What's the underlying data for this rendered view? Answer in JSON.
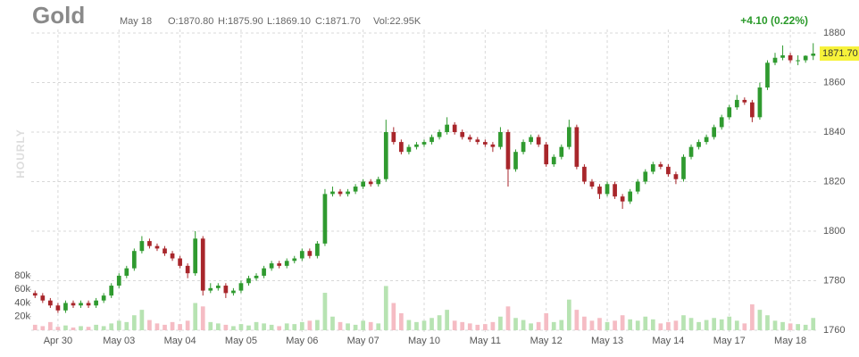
{
  "chart_data": {
    "type": "candlestick",
    "title": "Gold",
    "header": {
      "date": "May 18",
      "open": "O:1870.80",
      "high": "H:1875.90",
      "low": "L:1869.10",
      "close": "C:1871.70",
      "volume": "Vol:22.95K",
      "change": "+4.10 (0.22%)"
    },
    "side_label": "HOURLY",
    "last_label": {
      "value": 1871.7,
      "label": "1871.70"
    },
    "up_color": "#2f9a2f",
    "down_color": "#a8262b",
    "volume_up_color": "#b7e3b2",
    "volume_down_color": "#f5bcc4",
    "label_color": "#f7f23a",
    "grid": true,
    "categories": [
      null,
      null,
      null,
      "Apr 30",
      null,
      null,
      null,
      null,
      null,
      null,
      null,
      "May 03",
      null,
      null,
      null,
      null,
      null,
      null,
      null,
      "May 04",
      null,
      null,
      null,
      null,
      null,
      null,
      null,
      "May 05",
      null,
      null,
      null,
      null,
      null,
      null,
      null,
      "May 06",
      null,
      null,
      null,
      null,
      null,
      null,
      null,
      "May 07",
      null,
      null,
      null,
      null,
      null,
      null,
      null,
      "May 10",
      null,
      null,
      null,
      null,
      null,
      null,
      null,
      "May 11",
      null,
      null,
      null,
      null,
      null,
      null,
      null,
      "May 12",
      null,
      null,
      null,
      null,
      null,
      null,
      null,
      "May 13",
      null,
      null,
      null,
      null,
      null,
      null,
      null,
      "May 14",
      null,
      null,
      null,
      null,
      null,
      null,
      null,
      "May 17",
      null,
      null,
      null,
      null,
      null,
      null,
      null,
      "May 18",
      null,
      null,
      null
    ],
    "open": [
      1775,
      1774,
      1772,
      1770,
      1768,
      1771,
      1770,
      1771,
      1770,
      1772,
      1774,
      1778,
      1782,
      1785,
      1792,
      1796,
      1794,
      1793,
      1791,
      1789,
      1786,
      1783,
      1797,
      1776,
      1777,
      1778,
      1775,
      1776,
      1779,
      1781,
      1782,
      1785,
      1787,
      1786,
      1788,
      1789,
      1792,
      1790,
      1795,
      1815,
      1816,
      1815,
      1816,
      1818,
      1820,
      1819,
      1821,
      1840,
      1836,
      1832,
      1834,
      1835,
      1836,
      1838,
      1840,
      1843,
      1840,
      1838,
      1837,
      1836,
      1835,
      1834,
      1840,
      1825,
      1832,
      1836,
      1838,
      1835,
      1827,
      1830,
      1834,
      1842,
      1826,
      1820,
      1818,
      1815,
      1819,
      1814,
      1812,
      1816,
      1820,
      1824,
      1827,
      1826,
      1823,
      1821,
      1830,
      1834,
      1836,
      1838,
      1842,
      1846,
      1850,
      1853,
      1852,
      1846,
      1858,
      1868,
      1870,
      1871,
      1869,
      1869,
      1870.8
    ],
    "high": [
      1776,
      1775,
      1773,
      1771,
      1772,
      1772,
      1772,
      1772,
      1773,
      1775,
      1779,
      1783,
      1786,
      1793,
      1798,
      1797,
      1795,
      1794,
      1792,
      1790,
      1787,
      1800,
      1798,
      1779,
      1779,
      1779,
      1777,
      1780,
      1782,
      1783,
      1786,
      1788,
      1788,
      1789,
      1790,
      1793,
      1793,
      1796,
      1817,
      1818,
      1817,
      1817,
      1819,
      1821,
      1821,
      1822,
      1845,
      1842,
      1837,
      1835,
      1836,
      1837,
      1839,
      1841,
      1846,
      1844,
      1841,
      1839,
      1838,
      1837,
      1836,
      1842,
      1841,
      1833,
      1837,
      1839,
      1839,
      1836,
      1831,
      1835,
      1845,
      1843,
      1827,
      1821,
      1819,
      1820,
      1820,
      1815,
      1817,
      1821,
      1825,
      1828,
      1828,
      1827,
      1824,
      1831,
      1835,
      1837,
      1839,
      1843,
      1847,
      1851,
      1855,
      1854,
      1853,
      1860,
      1869,
      1872,
      1875,
      1872,
      1871,
      1871,
      1875.9
    ],
    "low": [
      1773,
      1771,
      1769,
      1767,
      1767,
      1769,
      1769,
      1769,
      1769,
      1771,
      1773,
      1777,
      1781,
      1784,
      1791,
      1793,
      1792,
      1790,
      1788,
      1785,
      1781,
      1782,
      1774,
      1775,
      1776,
      1773,
      1774,
      1775,
      1778,
      1780,
      1781,
      1784,
      1785,
      1785,
      1787,
      1788,
      1789,
      1789,
      1794,
      1814,
      1814,
      1814,
      1815,
      1817,
      1818,
      1818,
      1820,
      1835,
      1831,
      1831,
      1833,
      1834,
      1835,
      1837,
      1839,
      1839,
      1837,
      1836,
      1835,
      1834,
      1832,
      1833,
      1818,
      1824,
      1831,
      1835,
      1834,
      1826,
      1826,
      1829,
      1833,
      1825,
      1819,
      1817,
      1813,
      1814,
      1813,
      1809,
      1811,
      1815,
      1819,
      1823,
      1825,
      1822,
      1819,
      1820,
      1829,
      1833,
      1835,
      1837,
      1841,
      1845,
      1849,
      1851,
      1844,
      1845,
      1857,
      1867,
      1869,
      1868,
      1867,
      1868,
      1869.1
    ],
    "close": [
      1774,
      1772,
      1770,
      1768,
      1771,
      1770,
      1771,
      1770,
      1772,
      1774,
      1778,
      1782,
      1785,
      1792,
      1796,
      1794,
      1793,
      1791,
      1789,
      1786,
      1783,
      1797,
      1776,
      1777,
      1778,
      1775,
      1776,
      1779,
      1781,
      1782,
      1785,
      1787,
      1786,
      1788,
      1789,
      1792,
      1790,
      1795,
      1815,
      1816,
      1815,
      1816,
      1818,
      1820,
      1819,
      1821,
      1840,
      1836,
      1832,
      1834,
      1835,
      1836,
      1838,
      1840,
      1843,
      1840,
      1838,
      1837,
      1836,
      1835,
      1834,
      1840,
      1825,
      1832,
      1836,
      1838,
      1835,
      1827,
      1830,
      1834,
      1842,
      1826,
      1820,
      1818,
      1815,
      1819,
      1814,
      1812,
      1816,
      1820,
      1824,
      1827,
      1826,
      1823,
      1821,
      1830,
      1834,
      1836,
      1838,
      1842,
      1846,
      1850,
      1853,
      1852,
      1846,
      1858,
      1868,
      1870,
      1871,
      1869,
      1869,
      1870.8,
      1871.7
    ],
    "volume": [
      8000,
      6000,
      12000,
      5000,
      7000,
      4000,
      6000,
      5000,
      8000,
      6000,
      10000,
      14000,
      12000,
      22000,
      30000,
      15000,
      10000,
      8000,
      12000,
      9000,
      14000,
      40000,
      35000,
      12000,
      10000,
      8000,
      6000,
      9000,
      7000,
      12000,
      10000,
      8000,
      6000,
      10000,
      9000,
      12000,
      14000,
      15000,
      55000,
      20000,
      12000,
      10000,
      8000,
      14000,
      12000,
      10000,
      65000,
      40000,
      25000,
      15000,
      12000,
      14000,
      18000,
      22000,
      30000,
      14000,
      12000,
      10000,
      8000,
      9000,
      12000,
      20000,
      35000,
      18000,
      15000,
      10000,
      12000,
      25000,
      12000,
      15000,
      45000,
      30000,
      20000,
      14000,
      18000,
      12000,
      14000,
      22000,
      16000,
      14000,
      20000,
      16000,
      10000,
      12000,
      14000,
      22000,
      18000,
      12000,
      15000,
      18000,
      16000,
      20000,
      14000,
      10000,
      38000,
      30000,
      22000,
      14000,
      12000,
      10000,
      9000,
      8000,
      18000
    ],
    "ylim": [
      1760,
      1880
    ],
    "yticks": [
      1760,
      1780,
      1800,
      1820,
      1840,
      1860,
      1880
    ],
    "y2lim": [
      0,
      80000
    ],
    "y2ticks": [
      {
        "value": 20000,
        "label": "20k"
      },
      {
        "value": 40000,
        "label": "40k"
      },
      {
        "value": 60000,
        "label": "60k"
      },
      {
        "value": 80000,
        "label": "80k"
      }
    ]
  }
}
